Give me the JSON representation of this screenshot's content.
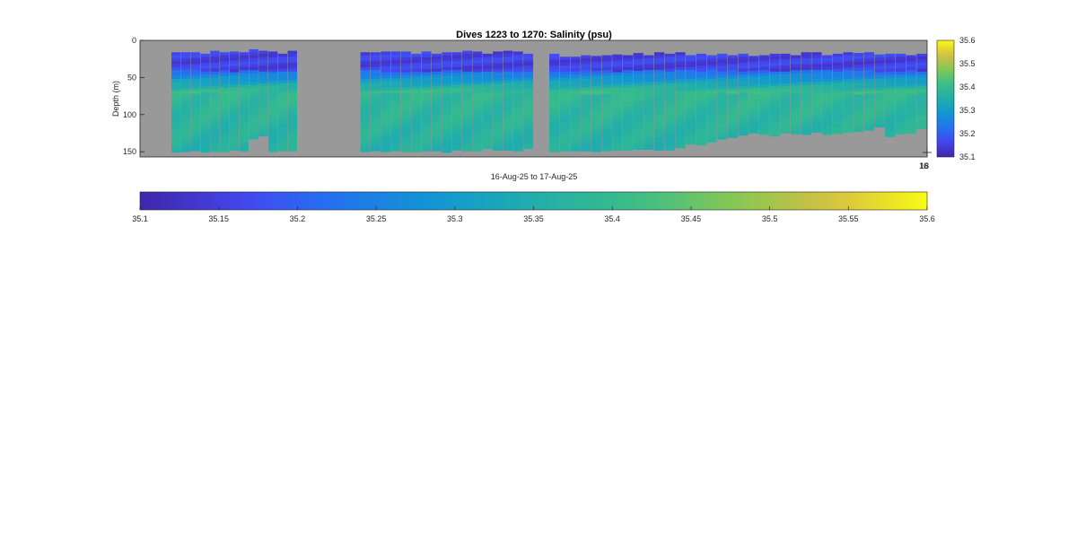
{
  "chart_data": {
    "type": "heatmap",
    "title": "Dives 1223 to 1270: Salinity (psu)",
    "xlabel": "16-Aug-25 to 17-Aug-25",
    "ylabel": "Depth (m)",
    "x_tick_labels": [
      "16",
      "18"
    ],
    "y_ticks": [
      0,
      50,
      100,
      150
    ],
    "ylim": [
      0,
      157
    ],
    "clim": [
      35.1,
      35.6
    ],
    "colormap": "parula",
    "no_data_color": "#999999",
    "side_colorbar_ticks": [
      "35.1",
      "35.2",
      "35.3",
      "35.4",
      "35.5",
      "35.6"
    ],
    "bottom_colorbar_ticks": [
      "35.1",
      "35.15",
      "35.2",
      "35.25",
      "35.3",
      "35.35",
      "35.4",
      "35.45",
      "35.5",
      "35.55",
      "35.6"
    ],
    "profile_groups": [
      {
        "start_frac": 0.04,
        "end_frac": 0.2,
        "count": 13,
        "bottom_depths": [
          151,
          150,
          149,
          151,
          150,
          150,
          148,
          149,
          133,
          129,
          150,
          149,
          149
        ],
        "top_depths": [
          16,
          16,
          16,
          18,
          14,
          16,
          15,
          16,
          12,
          14,
          15,
          18,
          14
        ]
      },
      {
        "start_frac": 0.28,
        "end_frac": 0.5,
        "count": 17,
        "bottom_depths": [
          150,
          149,
          150,
          149,
          150,
          150,
          149,
          149,
          151,
          148,
          149,
          149,
          146,
          148,
          148,
          149,
          146
        ],
        "top_depths": [
          16,
          16,
          15,
          15,
          15,
          18,
          15,
          18,
          16,
          16,
          14,
          15,
          18,
          15,
          14,
          15,
          18
        ]
      },
      {
        "start_frac": 0.52,
        "end_frac": 1.0,
        "count": 36,
        "bottom_depths": [
          150,
          149,
          149,
          149,
          150,
          149,
          148,
          148,
          147,
          147,
          148,
          148,
          145,
          140,
          141,
          137,
          133,
          131,
          128,
          125,
          127,
          129,
          125,
          126,
          127,
          124,
          127,
          126,
          124,
          123,
          121,
          117,
          130,
          126,
          125,
          119
        ],
        "top_depths": [
          18,
          22,
          22,
          20,
          21,
          20,
          19,
          20,
          17,
          20,
          16,
          18,
          16,
          20,
          18,
          20,
          18,
          20,
          18,
          21,
          20,
          18,
          18,
          20,
          16,
          16,
          20,
          18,
          16,
          17,
          16,
          19,
          18,
          18,
          20,
          18
        ]
      }
    ]
  }
}
